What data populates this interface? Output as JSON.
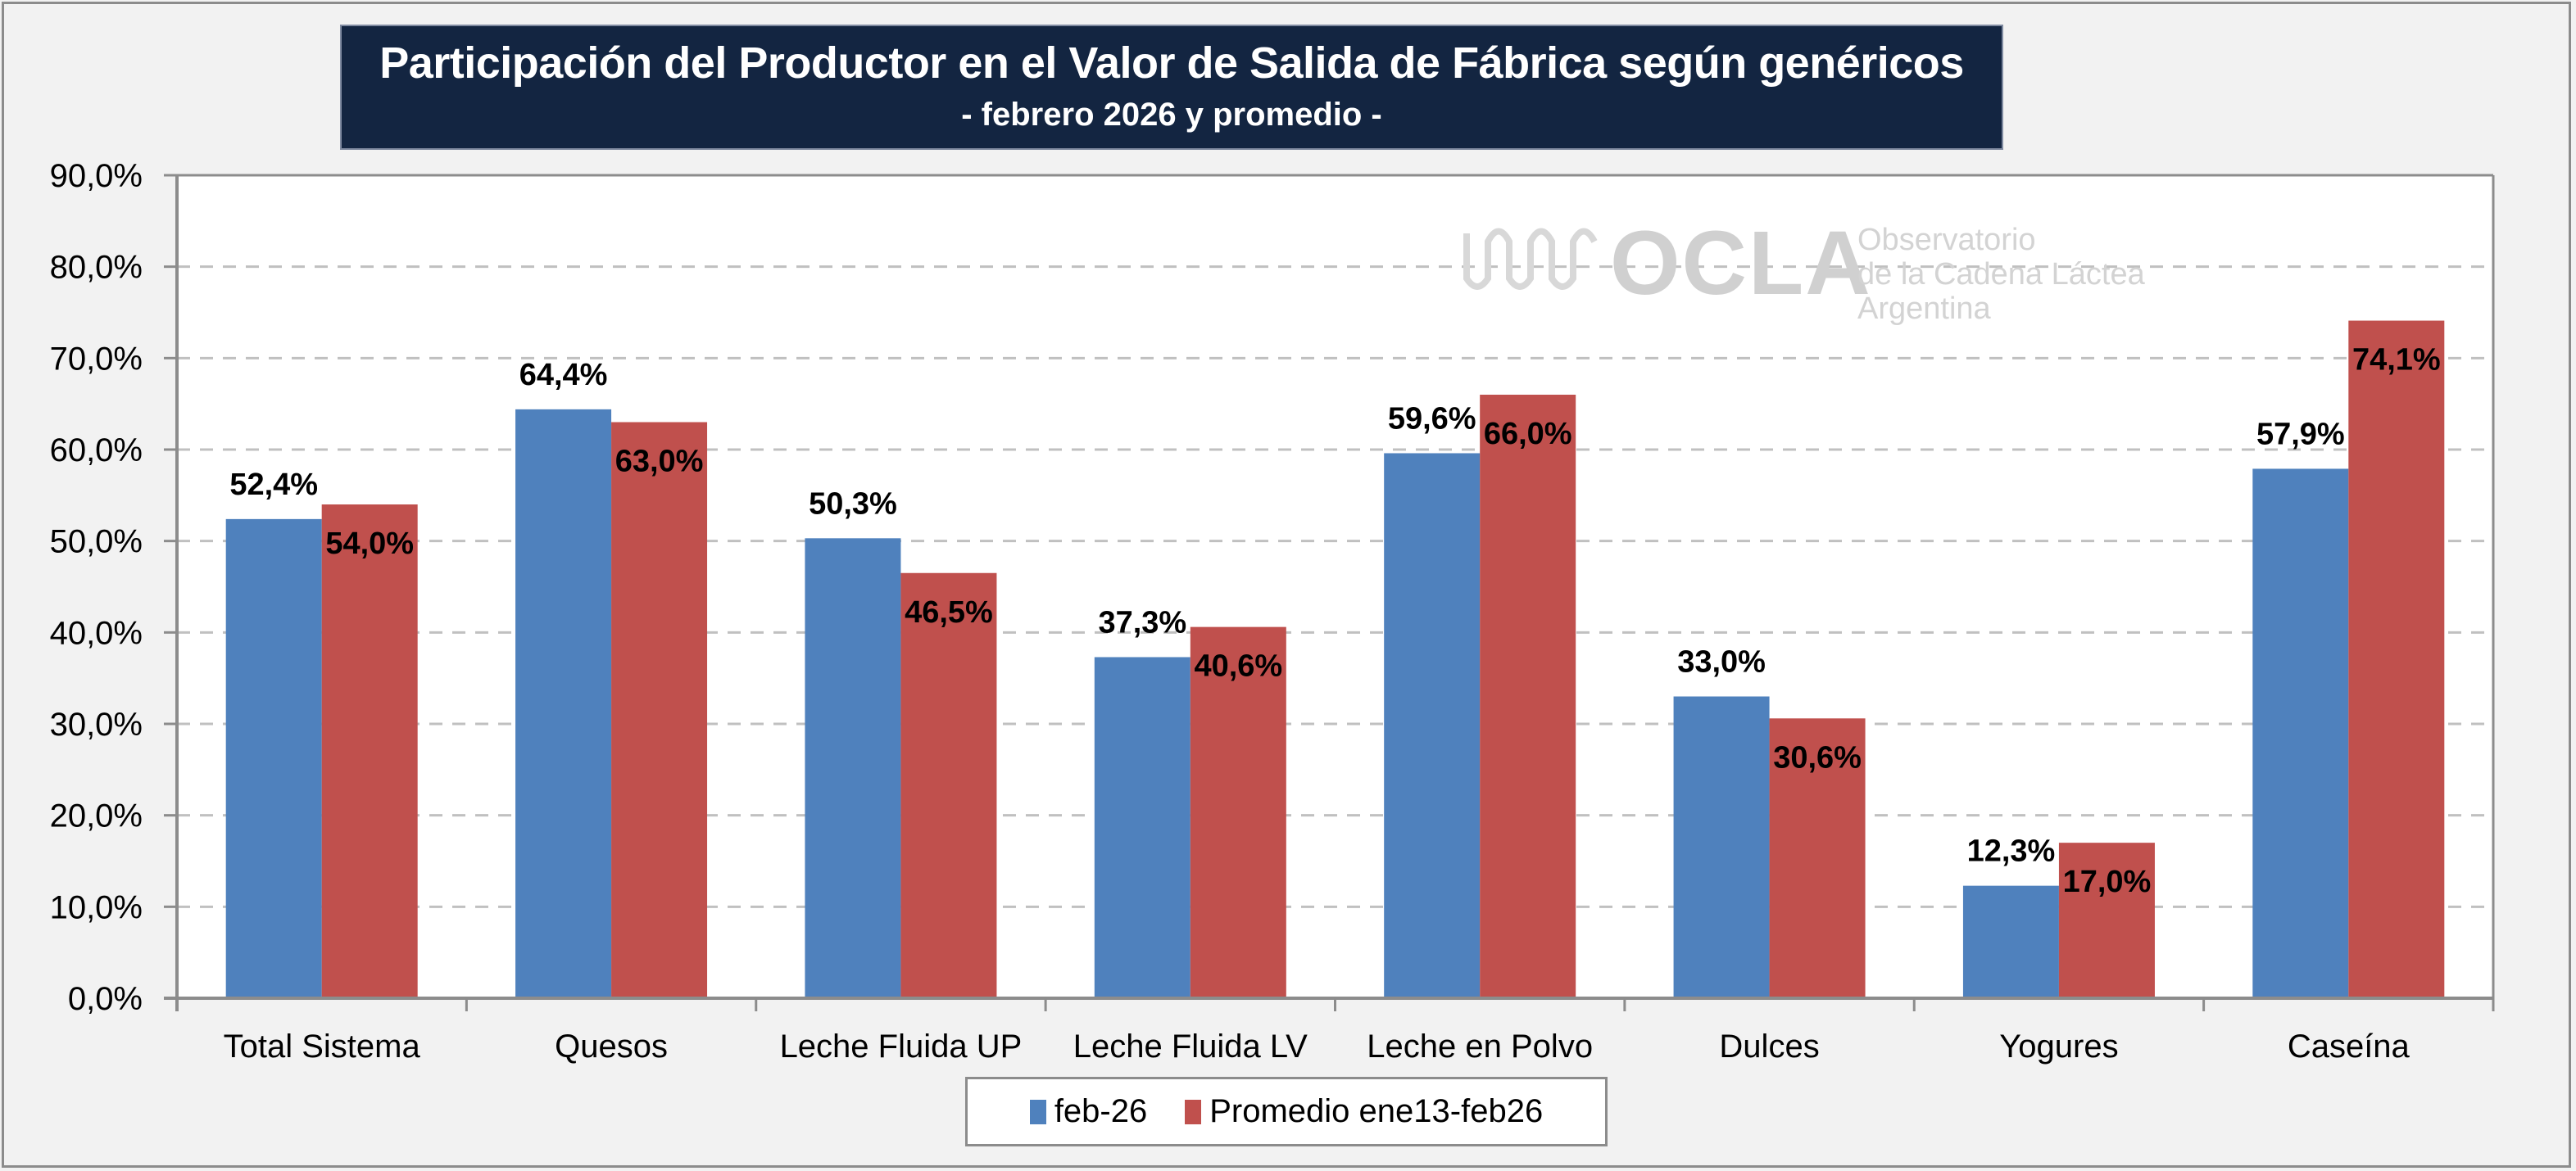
{
  "title": "Participación del Productor en el Valor de Salida de Fábrica según genéricos",
  "subtitle": "- febrero 2026 y promedio  -",
  "watermark": {
    "logo_text": "OCLA",
    "line1": "Observatorio",
    "line2": "de la Cadena Láctea",
    "line3": "Argentina"
  },
  "colors": {
    "series1": "#4f81bd",
    "series2": "#c0504d",
    "title_bg": "#132541",
    "grid": "#c0c0c0"
  },
  "legend": {
    "items": [
      "feb-26",
      "Promedio ene13-feb26"
    ]
  },
  "chart_data": {
    "type": "bar",
    "title": "Participación del Productor en el Valor de Salida de Fábrica según genéricos",
    "subtitle": "- febrero 2026 y promedio  -",
    "xlabel": "",
    "ylabel": "",
    "ylim": [
      0,
      90
    ],
    "ytick_step": 10,
    "ytick_labels": [
      "0,0%",
      "10,0%",
      "20,0%",
      "30,0%",
      "40,0%",
      "50,0%",
      "60,0%",
      "70,0%",
      "80,0%",
      "90,0%"
    ],
    "grid": true,
    "grid_style": "dashed",
    "legend_position": "bottom",
    "categories": [
      "Total Sistema",
      "Quesos",
      "Leche Fluida UP",
      "Leche Fluida LV",
      "Leche en Polvo",
      "Dulces",
      "Yogures",
      "Caseína"
    ],
    "series": [
      {
        "name": "feb-26",
        "values": [
          52.4,
          64.4,
          50.3,
          37.3,
          59.6,
          33.0,
          12.3,
          57.9
        ],
        "labels": [
          "52,4%",
          "64,4%",
          "50,3%",
          "37,3%",
          "59,6%",
          "33,0%",
          "12,3%",
          "57,9%"
        ]
      },
      {
        "name": "Promedio ene13-feb26",
        "values": [
          54.0,
          63.0,
          46.5,
          40.6,
          66.0,
          30.6,
          17.0,
          74.1
        ],
        "labels": [
          "54,0%",
          "63,0%",
          "46,5%",
          "40,6%",
          "66,0%",
          "30,6%",
          "17,0%",
          "74,1%"
        ]
      }
    ]
  }
}
